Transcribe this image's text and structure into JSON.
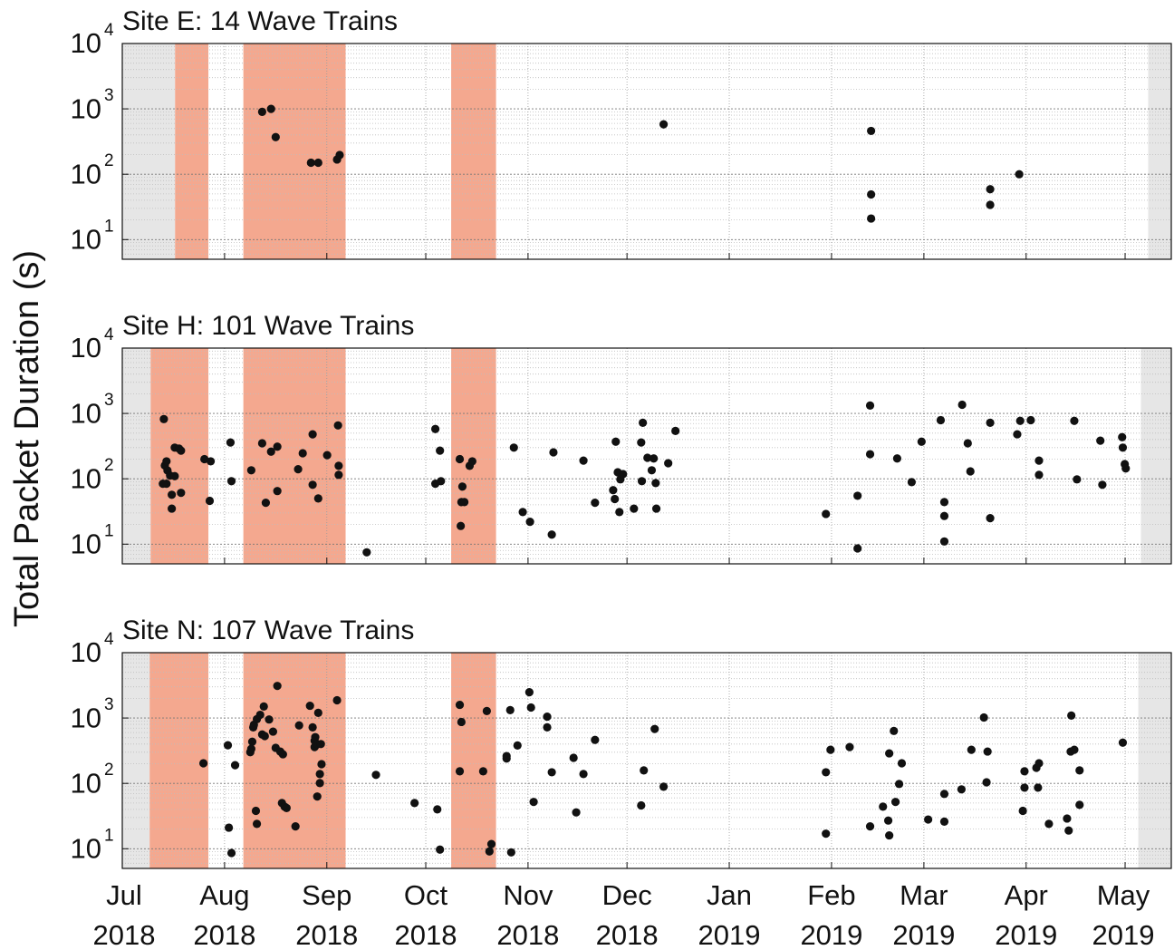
{
  "ylabel": "Total Packet Duration (s)",
  "xlim": [
    0,
    318
  ],
  "xticks": [
    {
      "value": 0,
      "label": "Jul 2018"
    },
    {
      "value": 31,
      "label": "Aug 2018"
    },
    {
      "value": 62,
      "label": "Sep 2018"
    },
    {
      "value": 92,
      "label": "Oct 2018"
    },
    {
      "value": 123,
      "label": "Nov 2018"
    },
    {
      "value": 153,
      "label": "Dec 2018"
    },
    {
      "value": 184,
      "label": "Jan 2019"
    },
    {
      "value": 215,
      "label": "Feb 2019"
    },
    {
      "value": 243,
      "label": "Mar 2019"
    },
    {
      "value": 274,
      "label": "Apr 2019"
    },
    {
      "value": 304,
      "label": "May 2019"
    }
  ],
  "chart_data": [
    {
      "type": "scatter",
      "title": "Site E: 14 Wave Trains",
      "yscale": "log",
      "grid": true,
      "minor_grid": true,
      "ylim": [
        5,
        10000
      ],
      "yticks": [
        {
          "value": 10,
          "label": "10",
          "exponent": "1"
        },
        {
          "value": 100,
          "label": "10",
          "exponent": "2"
        },
        {
          "value": 1000,
          "label": "10",
          "exponent": "3"
        },
        {
          "value": 10000,
          "label": "10",
          "exponent": "4"
        }
      ],
      "shaded": [
        {
          "start": 0,
          "end": 16,
          "color": "#e6e6e6"
        },
        {
          "start": 16,
          "end": 26.1,
          "color": "#f4a88f"
        },
        {
          "start": 36.7,
          "end": 67.7,
          "color": "#f4a88f"
        },
        {
          "start": 99.7,
          "end": 113.3,
          "color": "#f4a88f"
        },
        {
          "start": 311,
          "end": 318,
          "color": "#e6e6e6"
        }
      ],
      "series": [
        {
          "color": "#111111",
          "x": [
            42.4,
            45.1,
            46.5,
            57.2,
            59.4,
            65.1,
            65.9,
            164.1,
            227.0,
            227.0,
            227.0,
            263.1,
            263.1,
            271.9
          ],
          "values": [
            900,
            1000,
            370,
            150,
            150,
            168,
            197,
            580,
            460,
            49,
            21,
            59,
            34,
            100
          ]
        }
      ]
    },
    {
      "type": "scatter",
      "title": "Site H: 101 Wave Trains",
      "yscale": "log",
      "grid": true,
      "minor_grid": true,
      "ylim": [
        5,
        10000
      ],
      "yticks": [
        {
          "value": 10,
          "label": "10",
          "exponent": "1"
        },
        {
          "value": 100,
          "label": "10",
          "exponent": "2"
        },
        {
          "value": 1000,
          "label": "10",
          "exponent": "3"
        },
        {
          "value": 10000,
          "label": "10",
          "exponent": "4"
        }
      ],
      "shaded": [
        {
          "start": 0,
          "end": 8.6,
          "color": "#e6e6e6"
        },
        {
          "start": 8.6,
          "end": 26.1,
          "color": "#f4a88f"
        },
        {
          "start": 36.7,
          "end": 67.7,
          "color": "#f4a88f"
        },
        {
          "start": 99.7,
          "end": 113.3,
          "color": "#f4a88f"
        },
        {
          "start": 308.8,
          "end": 318,
          "color": "#e6e6e6"
        }
      ],
      "series": [
        {
          "color": "#111111",
          "x": [
            12.6,
            12.9,
            13.7,
            13.4,
            14.5,
            15.0,
            15.0,
            15.9,
            15.9,
            17.2,
            17.8,
            17.8,
            24.9,
            26.8,
            26.5,
            32.8,
            33.1,
            39.1,
            42.4,
            43.5,
            45.1,
            47.0,
            47.0,
            53.3,
            54.7,
            57.7,
            57.7,
            59.4,
            62.1,
            65.4,
            65.6,
            65.6,
            74.1,
            94.9,
            96.3,
            94.9,
            96.6,
            102.3,
            103.1,
            102.8,
            103.7,
            102.6,
            105.3,
            106.1,
            118.7,
            121.4,
            123.6,
            130.2,
            130.7,
            139.8,
            143.3,
            148.8,
            149.6,
            149.3,
            150.2,
            151.0,
            151.8,
            150.7,
            155.1,
            157.3,
            157.8,
            157.5,
            159.2,
            160.5,
            161.1,
            161.7,
            161.9,
            165.5,
            167.7,
            213.3,
            222.9,
            222.9,
            226.7,
            226.7,
            234.9,
            239.3,
            242.3,
            248.1,
            249.2,
            249.2,
            249.2,
            254.6,
            256.3,
            257.1,
            263.1,
            263.1,
            271.3,
            272.2,
            275.4,
            277.9,
            277.9,
            288.6,
            289.4,
            296.5,
            297.1,
            303.1,
            303.3,
            303.9,
            304.2,
            12.3,
            13.4
          ],
          "values": [
            820,
            160,
            134,
            84,
            112,
            57,
            35,
            110,
            300,
            290,
            61,
            270,
            200,
            185,
            46,
            360,
            92,
            135,
            350,
            43,
            260,
            310,
            65,
            140,
            246,
            479,
            81,
            50,
            230,
            656,
            158,
            115,
            7.5,
            578,
            270,
            84,
            92,
            200,
            76,
            44,
            44,
            19,
            158,
            185,
            300,
            31,
            22,
            14,
            254,
            190,
            43,
            67,
            370,
            49,
            126,
            98,
            118,
            31,
            35,
            360,
            720,
            92,
            210,
            135,
            205,
            86,
            35,
            173,
            540,
            29,
            55,
            8.6,
            1320,
            238,
            205,
            89,
            370,
            790,
            44,
            27,
            11,
            1360,
            350,
            130,
            720,
            25,
            480,
            770,
            790,
            190,
            115,
            770,
            98,
            383,
            81,
            434,
            300,
            168,
            144,
            84,
            185
          ]
        }
      ]
    },
    {
      "type": "scatter",
      "title": "Site N: 107 Wave Trains",
      "yscale": "log",
      "grid": true,
      "minor_grid": true,
      "ylim": [
        5,
        10000
      ],
      "yticks": [
        {
          "value": 10,
          "label": "10",
          "exponent": "1"
        },
        {
          "value": 100,
          "label": "10",
          "exponent": "2"
        },
        {
          "value": 1000,
          "label": "10",
          "exponent": "3"
        },
        {
          "value": 10000,
          "label": "10",
          "exponent": "4"
        }
      ],
      "shaded": [
        {
          "start": 0,
          "end": 8.3,
          "color": "#e6e6e6"
        },
        {
          "start": 8.3,
          "end": 26.1,
          "color": "#f4a88f"
        },
        {
          "start": 36.7,
          "end": 67.7,
          "color": "#f4a88f"
        },
        {
          "start": 99.7,
          "end": 113.3,
          "color": "#f4a88f"
        },
        {
          "start": 308,
          "end": 318,
          "color": "#e6e6e6"
        }
      ],
      "series": [
        {
          "color": "#111111",
          "x": [
            24.6,
            32.0,
            32.3,
            33.1,
            34.2,
            39.1,
            39.4,
            39.7,
            39.9,
            40.8,
            41.8,
            42.9,
            40.5,
            40.8,
            42.4,
            43.2,
            45.7,
            46.5,
            47.0,
            47.9,
            48.7,
            48.4,
            49.2,
            49.8,
            52.5,
            53.6,
            56.9,
            57.7,
            58.3,
            58.3,
            58.5,
            59.1,
            59.4,
            59.1,
            59.9,
            59.9,
            60.4,
            65.1,
            76.9,
            88.6,
            95.5,
            96.3,
            102.3,
            102.8,
            102.3,
            109.4,
            110.5,
            111.9,
            111.3,
            117.9,
            116.5,
            116.5,
            117.6,
            119.8,
            123.4,
            123.9,
            124.7,
            128.8,
            128.8,
            130.2,
            136.8,
            137.6,
            139.8,
            143.3,
            157.3,
            158.1,
            161.4,
            164.1,
            213.3,
            213.3,
            214.7,
            220.5,
            226.7,
            230.6,
            232.2,
            232.5,
            232.5,
            233.9,
            234.4,
            235.5,
            236.3,
            244.3,
            249.2,
            249.2,
            254.4,
            257.4,
            261.2,
            262.3,
            262.0,
            273.0,
            273.5,
            273.5,
            277.1,
            277.6,
            277.9,
            280.9,
            286.4,
            286.9,
            287.5,
            288.6,
            287.7,
            290.2,
            290.2,
            303.3,
            38.8,
            44.5,
            60.2
          ],
          "values": [
            203,
            383,
            21,
            8.6,
            190,
            337,
            434,
            720,
            790,
            960,
            1120,
            1500,
            38,
            24,
            560,
            530,
            620,
            350,
            3100,
            307,
            279,
            50,
            44,
            42,
            22,
            770,
            1540,
            720,
            450,
            360,
            510,
            395,
            1200,
            63,
            101,
            139,
            197,
            1870,
            135,
            50,
            40,
            9.7,
            1590,
            870,
            153,
            153,
            1280,
            11.8,
            9.1,
            8.8,
            262,
            240,
            1320,
            380,
            2480,
            1450,
            52,
            1050,
            720,
            148,
            246,
            36,
            139,
            463,
            46,
            158,
            680,
            89,
            148,
            17,
            327,
            360,
            22,
            44,
            27,
            16,
            288,
            635,
            52,
            98,
            203,
            28,
            26,
            69,
            81,
            327,
            1020,
            307,
            104,
            38,
            153,
            86,
            173,
            86,
            203,
            24,
            29,
            19,
            307,
            327,
            1090,
            158,
            47,
            420,
            300,
            950,
            400
          ]
        }
      ]
    }
  ]
}
